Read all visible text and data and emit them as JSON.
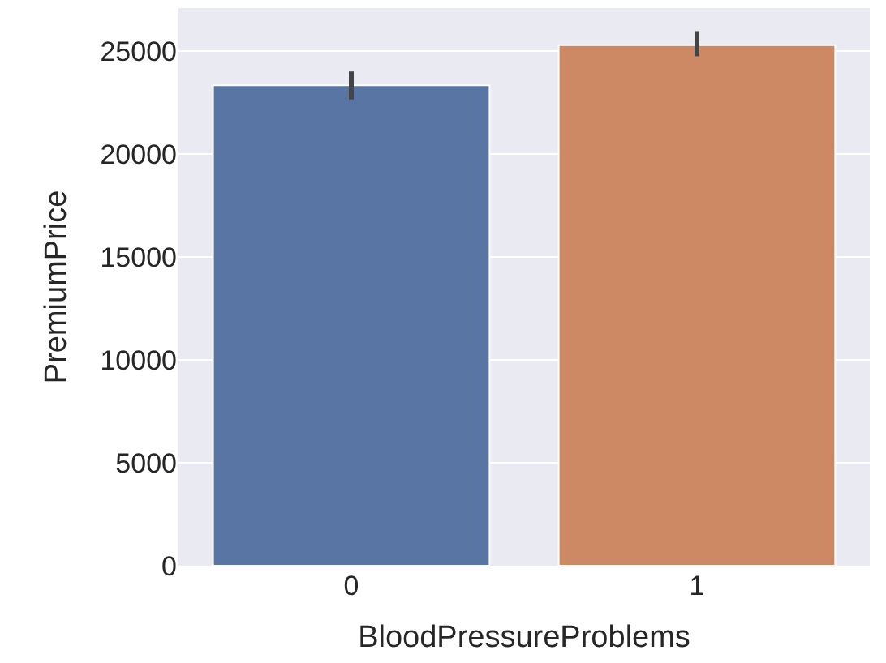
{
  "chart_data": {
    "type": "bar",
    "xlabel": "BloodPressureProblems",
    "ylabel": "PremiumPrice",
    "categories": [
      "0",
      "1"
    ],
    "values": [
      23350,
      25300
    ],
    "colors": [
      "#5875a4",
      "#cc8963"
    ],
    "errors": [
      [
        22660,
        24020
      ],
      [
        24760,
        25980
      ]
    ],
    "ylim": [
      0,
      27100
    ],
    "yticks": [
      0,
      5000,
      10000,
      15000,
      20000,
      25000
    ],
    "grid": "y"
  }
}
